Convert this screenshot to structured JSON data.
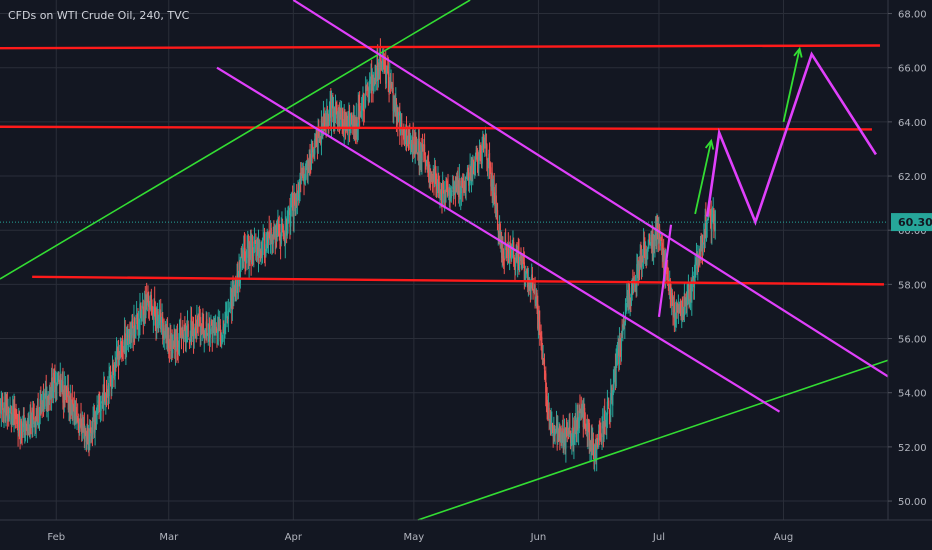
{
  "chart_data": {
    "type": "candlestick",
    "title": "CFDs on WTI Crude Oil, 240, TVC",
    "xlabel": "",
    "ylabel": "",
    "ylim": [
      49.3,
      68.5
    ],
    "y_ticks": [
      "50.00",
      "52.00",
      "54.00",
      "56.00",
      "58.00",
      "60.00",
      "62.00",
      "64.00",
      "66.00",
      "68.00"
    ],
    "y_tick_values": [
      50,
      52,
      54,
      56,
      58,
      60,
      62,
      64,
      66,
      68
    ],
    "x_ticks": [
      {
        "label": "Feb",
        "date": "2019-02-01"
      },
      {
        "label": "Mar",
        "date": "2019-03-01"
      },
      {
        "label": "Apr",
        "date": "2019-04-01"
      },
      {
        "label": "May",
        "date": "2019-05-01"
      },
      {
        "label": "Jun",
        "date": "2019-06-01"
      },
      {
        "label": "Jul",
        "date": "2019-07-01"
      },
      {
        "label": "Aug",
        "date": "2019-08-01"
      }
    ],
    "xlim": [
      "2019-01-18",
      "2019-08-27"
    ],
    "last_price": 60.3,
    "last_price_label": "60.30",
    "colors": {
      "background": "#131722",
      "grid": "#2a2e39",
      "up": "#26a69a",
      "down": "#ef5350",
      "resistance": "#ff1a1a",
      "channel": "#e040fb",
      "trendline": "#33dd33",
      "arrow": "#33dd33",
      "price_tag": "#26a69a",
      "axis_text": "#b2b5be"
    },
    "price_path": [
      {
        "date": "2019-01-18",
        "price": 53.5
      },
      {
        "date": "2019-01-25",
        "price": 52.6
      },
      {
        "date": "2019-02-01",
        "price": 54.5
      },
      {
        "date": "2019-02-09",
        "price": 52.3
      },
      {
        "date": "2019-02-17",
        "price": 55.6
      },
      {
        "date": "2019-02-24",
        "price": 57.4
      },
      {
        "date": "2019-03-01",
        "price": 55.8
      },
      {
        "date": "2019-03-08",
        "price": 56.4
      },
      {
        "date": "2019-03-14",
        "price": 56.2
      },
      {
        "date": "2019-03-20",
        "price": 59.2
      },
      {
        "date": "2019-03-25",
        "price": 59.4
      },
      {
        "date": "2019-03-30",
        "price": 60.0
      },
      {
        "date": "2019-04-04",
        "price": 62.2
      },
      {
        "date": "2019-04-10",
        "price": 64.4
      },
      {
        "date": "2019-04-16",
        "price": 63.8
      },
      {
        "date": "2019-04-23",
        "price": 66.4
      },
      {
        "date": "2019-04-28",
        "price": 63.6
      },
      {
        "date": "2019-05-03",
        "price": 62.8
      },
      {
        "date": "2019-05-08",
        "price": 61.4
      },
      {
        "date": "2019-05-13",
        "price": 61.6
      },
      {
        "date": "2019-05-19",
        "price": 63.2
      },
      {
        "date": "2019-05-23",
        "price": 59.2
      },
      {
        "date": "2019-05-27",
        "price": 59.0
      },
      {
        "date": "2019-05-31",
        "price": 57.8
      },
      {
        "date": "2019-06-04",
        "price": 52.8
      },
      {
        "date": "2019-06-08",
        "price": 52.2
      },
      {
        "date": "2019-06-12",
        "price": 53.2
      },
      {
        "date": "2019-06-15",
        "price": 51.8
      },
      {
        "date": "2019-06-19",
        "price": 53.6
      },
      {
        "date": "2019-06-23",
        "price": 57.2
      },
      {
        "date": "2019-06-27",
        "price": 59.2
      },
      {
        "date": "2019-07-01",
        "price": 59.8
      },
      {
        "date": "2019-07-05",
        "price": 56.8
      },
      {
        "date": "2019-07-09",
        "price": 57.8
      },
      {
        "date": "2019-07-13",
        "price": 60.5
      },
      {
        "date": "2019-07-15",
        "price": 60.3
      }
    ],
    "horizontal_lines": [
      {
        "price_start": 66.72,
        "price_end": 66.82,
        "date_start": "2019-01-18",
        "date_end": "2019-08-25"
      },
      {
        "price_start": 63.82,
        "price_end": 63.72,
        "date_start": "2019-01-18",
        "date_end": "2019-08-23"
      },
      {
        "price_start": 58.28,
        "price_end": 58.0,
        "date_start": "2019-01-26",
        "date_end": "2019-08-26"
      }
    ],
    "channel_lines": [
      {
        "date_start": "2019-04-01",
        "price_start": 68.5,
        "date_end": "2019-08-27",
        "price_end": 54.6
      },
      {
        "date_start": "2019-03-13",
        "price_start": 66.0,
        "date_end": "2019-07-31",
        "price_end": 53.3
      }
    ],
    "trend_lines": [
      {
        "date_start": "2019-01-18",
        "price_start": 58.2,
        "date_end": "2019-05-15",
        "price_end": 68.5
      },
      {
        "date_start": "2019-05-02",
        "price_start": 49.3,
        "date_end": "2019-08-27",
        "price_end": 55.2
      }
    ],
    "projection_path": [
      {
        "date": "2019-07-13",
        "price": 60.5
      },
      {
        "date": "2019-07-16",
        "price": 63.6
      },
      {
        "date": "2019-07-25",
        "price": 60.3
      },
      {
        "date": "2019-08-08",
        "price": 66.5
      },
      {
        "date": "2019-08-24",
        "price": 62.8
      }
    ],
    "extra_channel_segment": [
      {
        "date": "2019-07-01",
        "price": 56.8
      },
      {
        "date": "2019-07-04",
        "price": 60.2
      }
    ],
    "arrows": [
      {
        "date_start": "2019-07-10",
        "price_start": 60.6,
        "date_end": "2019-07-14",
        "price_end": 63.3
      },
      {
        "date_start": "2019-08-01",
        "price_start": 64.0,
        "date_end": "2019-08-05",
        "price_end": 66.7
      }
    ]
  }
}
